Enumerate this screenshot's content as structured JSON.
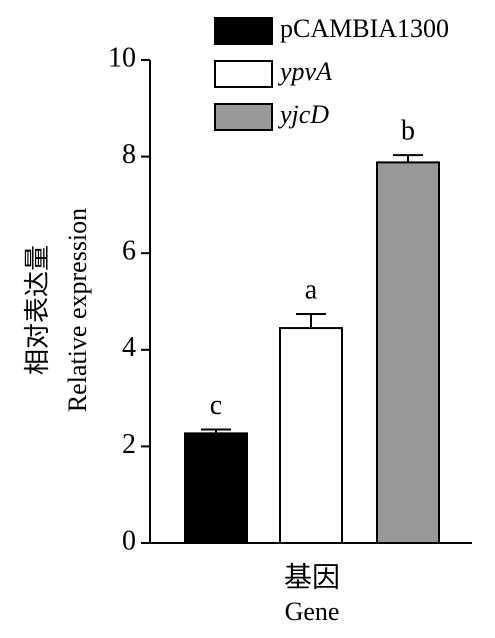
{
  "chart_data": {
    "type": "bar",
    "y_label": [
      "相对表达量",
      "Relative expression"
    ],
    "x_label": [
      "基因",
      "Gene"
    ],
    "ylim": [
      0,
      10
    ],
    "yticks": [
      0,
      2,
      4,
      6,
      8,
      10
    ],
    "series": [
      {
        "name": "pCAMBIA1300",
        "color": "#000000",
        "italic": false,
        "values": [
          2.27
        ],
        "errors": [
          0.08
        ],
        "annotation": "c"
      },
      {
        "name": "ypvA",
        "color": "#ffffff",
        "italic": true,
        "values": [
          4.45
        ],
        "errors": [
          0.29
        ],
        "annotation": "a"
      },
      {
        "name": "yjcD",
        "color": "#999999",
        "italic": true,
        "values": [
          7.88
        ],
        "errors": [
          0.15
        ],
        "annotation": "b"
      }
    ]
  }
}
